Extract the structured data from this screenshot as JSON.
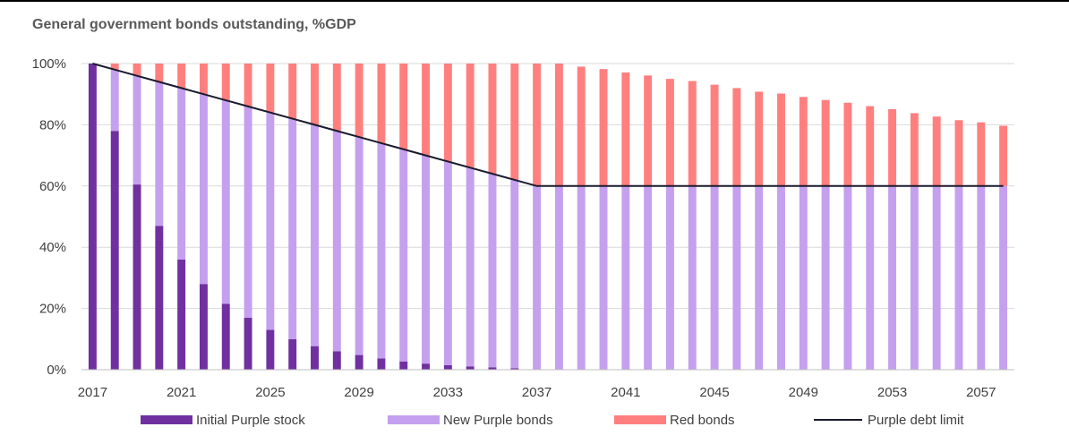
{
  "chart_data": {
    "type": "bar",
    "title": "General government bonds outstanding, %GDP",
    "stacked": true,
    "categories": [
      "2017",
      "2018",
      "2019",
      "2020",
      "2021",
      "2022",
      "2023",
      "2024",
      "2025",
      "2026",
      "2027",
      "2028",
      "2029",
      "2030",
      "2031",
      "2032",
      "2033",
      "2034",
      "2035",
      "2036",
      "2037",
      "2038",
      "2039",
      "2040",
      "2041",
      "2042",
      "2043",
      "2044",
      "2045",
      "2046",
      "2047",
      "2048",
      "2049",
      "2050",
      "2051",
      "2052",
      "2053",
      "2054",
      "2055",
      "2056",
      "2057",
      "2058"
    ],
    "x_tick_labels": [
      "2017",
      "2021",
      "2025",
      "2029",
      "2033",
      "2037",
      "2041",
      "2045",
      "2049",
      "2053",
      "2057"
    ],
    "y_tick_labels": [
      "0%",
      "20%",
      "40%",
      "60%",
      "80%",
      "100%"
    ],
    "ylim": [
      0,
      100
    ],
    "xlabel": "",
    "ylabel": "",
    "grid": true,
    "legend_position": "bottom",
    "series": [
      {
        "name": "Initial Purple stock",
        "kind": "bar",
        "color": "#7030a0",
        "values": [
          100,
          78,
          60.5,
          47,
          36,
          28,
          21.5,
          17,
          13,
          10,
          7.7,
          6,
          4.8,
          3.7,
          2.7,
          2,
          1.5,
          1.1,
          0.8,
          0.5,
          0,
          0,
          0,
          0,
          0,
          0,
          0,
          0,
          0,
          0,
          0,
          0,
          0,
          0,
          0,
          0,
          0,
          0,
          0,
          0,
          0,
          0
        ]
      },
      {
        "name": "New Purple bonds",
        "kind": "bar",
        "color": "#c5a0ee",
        "values": [
          0,
          20,
          35.5,
          47,
          56,
          62,
          66.5,
          69,
          71,
          72,
          72.3,
          72,
          71.2,
          70.3,
          69.3,
          68,
          66.5,
          64.9,
          63.2,
          61.5,
          60,
          60,
          60,
          60,
          60,
          60,
          60,
          60,
          60,
          60,
          60,
          60,
          60,
          60,
          60,
          60,
          60,
          60,
          60,
          60,
          60,
          60
        ]
      },
      {
        "name": "Red bonds",
        "kind": "bar",
        "color": "#ff7f7f",
        "values": [
          0,
          2,
          4,
          6,
          8,
          10,
          12,
          14,
          16,
          18,
          20,
          22,
          24,
          26,
          28,
          30,
          32,
          34,
          36,
          38,
          40,
          40,
          39,
          38.2,
          37.1,
          36.1,
          35,
          34.3,
          33.1,
          32,
          30.8,
          30.2,
          29.1,
          28.1,
          27.2,
          26.1,
          25.1,
          23.8,
          22.7,
          21.5,
          20.8,
          19.7
        ]
      },
      {
        "name": "Purple debt limit",
        "kind": "line",
        "color": "#1a1a2e",
        "values": [
          100,
          98,
          96,
          94,
          92,
          90,
          88,
          86,
          84,
          82,
          80,
          78,
          76,
          74,
          72,
          70,
          68,
          66,
          64,
          62,
          60,
          60,
          60,
          60,
          60,
          60,
          60,
          60,
          60,
          60,
          60,
          60,
          60,
          60,
          60,
          60,
          60,
          60,
          60,
          60,
          60,
          60
        ]
      }
    ]
  }
}
